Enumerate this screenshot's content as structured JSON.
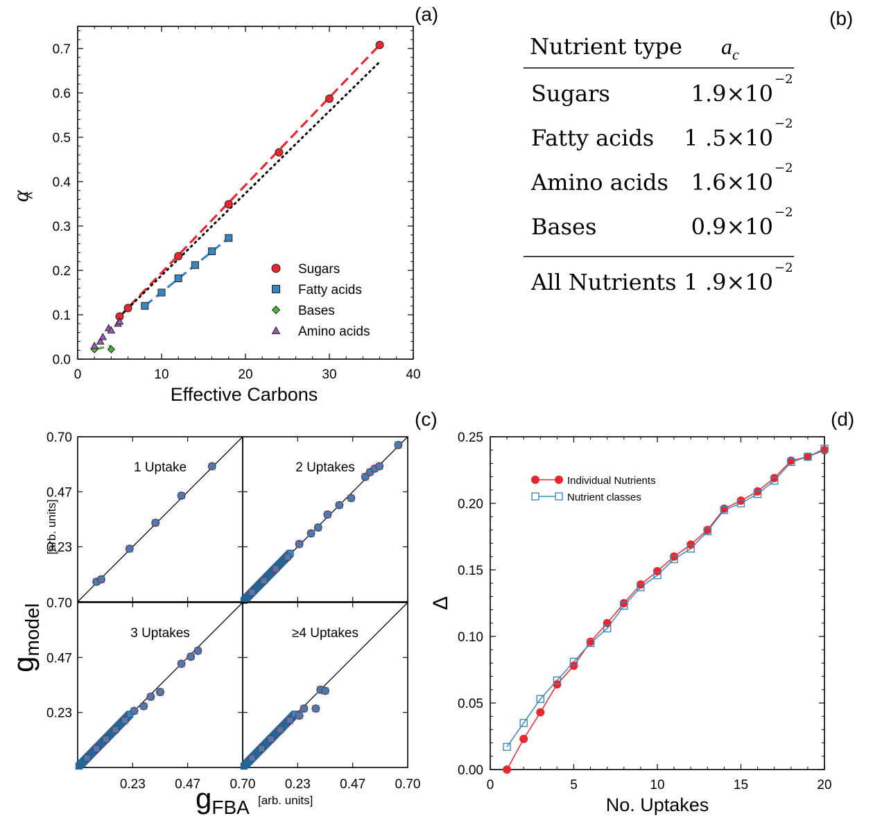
{
  "panel_labels": {
    "a": "(a)",
    "b": "(b)",
    "c": "(c)",
    "d": "(d)"
  },
  "colors": {
    "sugars": "#e8262e",
    "fatty": "#3a87c0",
    "bases": "#4daf3e",
    "amino": "#9b59b6"
  },
  "chart_data": [
    {
      "id": "a",
      "type": "scatter",
      "xlabel": "Effective Carbons",
      "ylabel": "α̂",
      "xlim": [
        0,
        40
      ],
      "ylim": [
        0,
        0.75
      ],
      "xticks": [
        "0",
        "10",
        "20",
        "30",
        "40"
      ],
      "yticks": [
        "0.0",
        "0.1",
        "0.2",
        "0.3",
        "0.4",
        "0.5",
        "0.6",
        "0.7"
      ],
      "legend_position": "bottom-right",
      "series": [
        {
          "name": "Sugars",
          "marker": "circle",
          "x": [
            5,
            6,
            12,
            18,
            24,
            30,
            36
          ],
          "y": [
            0.096,
            0.115,
            0.232,
            0.349,
            0.466,
            0.587,
            0.708
          ]
        },
        {
          "name": "Fatty acids",
          "marker": "square",
          "x": [
            8,
            10,
            12,
            14,
            16,
            18
          ],
          "y": [
            0.12,
            0.15,
            0.182,
            0.212,
            0.243,
            0.273
          ]
        },
        {
          "name": "Bases",
          "marker": "diamond",
          "x": [
            2,
            4
          ],
          "y": [
            0.022,
            0.022
          ]
        },
        {
          "name": "Amino acids",
          "marker": "triangle",
          "x": [
            2,
            2.7,
            3,
            3.7,
            4,
            4.8,
            5
          ],
          "y": [
            0.03,
            0.04,
            0.05,
            0.07,
            0.065,
            0.08,
            0.085
          ]
        }
      ],
      "fits": [
        {
          "series": "Sugars",
          "style": "dashed",
          "x": [
            5,
            36
          ],
          "y": [
            0.096,
            0.708
          ]
        },
        {
          "series": "Fatty acids",
          "style": "dashed",
          "x": [
            8,
            18
          ],
          "y": [
            0.12,
            0.273
          ]
        },
        {
          "series": "Bases",
          "style": "dashed",
          "x": [
            2,
            4
          ],
          "y": [
            0.022,
            0.03
          ]
        },
        {
          "series": "All",
          "style": "dotted",
          "x": [
            5,
            36
          ],
          "y": [
            0.096,
            0.67
          ]
        }
      ]
    },
    {
      "id": "c",
      "type": "scatter",
      "xlabel": "g",
      "xlabel_sub": "FBA",
      "ylabel": "g",
      "ylabel_sub": "model",
      "units": "[arb. units]",
      "ticks": [
        "0.23",
        "0.47",
        "0.70"
      ],
      "range": [
        0,
        0.7
      ],
      "panels": [
        {
          "title": "1 Uptake",
          "x": [
            0.08,
            0.1,
            0.22,
            0.33,
            0.44,
            0.57
          ],
          "y": [
            0.085,
            0.095,
            0.225,
            0.335,
            0.45,
            0.575
          ]
        },
        {
          "title": "2 Uptakes",
          "x": [
            0.04,
            0.09,
            0.14,
            0.19,
            0.24,
            0.29,
            0.32,
            0.36,
            0.41,
            0.46,
            0.52,
            0.54,
            0.56,
            0.58,
            0.66
          ],
          "y": [
            0.04,
            0.09,
            0.14,
            0.19,
            0.245,
            0.29,
            0.315,
            0.37,
            0.41,
            0.44,
            0.53,
            0.55,
            0.565,
            0.575,
            0.665
          ]
        },
        {
          "title": "3 Uptakes",
          "x": [
            0.04,
            0.08,
            0.12,
            0.16,
            0.2,
            0.24,
            0.28,
            0.31,
            0.35,
            0.44,
            0.48,
            0.51
          ],
          "y": [
            0.04,
            0.08,
            0.12,
            0.16,
            0.2,
            0.24,
            0.26,
            0.3,
            0.32,
            0.44,
            0.47,
            0.495
          ]
        },
        {
          "title": "≥4 Uptakes",
          "x": [
            0.04,
            0.08,
            0.12,
            0.16,
            0.2,
            0.24,
            0.26,
            0.31,
            0.33,
            0.35
          ],
          "y": [
            0.04,
            0.08,
            0.12,
            0.16,
            0.2,
            0.22,
            0.25,
            0.25,
            0.33,
            0.325
          ]
        }
      ]
    },
    {
      "id": "d",
      "type": "line",
      "xlabel": "No. Uptakes",
      "ylabel": "Δ",
      "xlim": [
        0,
        20
      ],
      "ylim": [
        0,
        0.25
      ],
      "xticks": [
        "0",
        "5",
        "10",
        "15",
        "20"
      ],
      "yticks": [
        "0.00",
        "0.05",
        "0.10",
        "0.15",
        "0.20",
        "0.25"
      ],
      "legend_position": "top-left",
      "x": [
        1,
        2,
        3,
        4,
        5,
        6,
        7,
        8,
        9,
        10,
        11,
        12,
        13,
        14,
        15,
        16,
        17,
        18,
        19,
        20
      ],
      "series": [
        {
          "name": "Individual Nutrients",
          "marker": "filled-circle",
          "values": [
            0.0,
            0.023,
            0.043,
            0.064,
            0.078,
            0.096,
            0.11,
            0.125,
            0.139,
            0.149,
            0.16,
            0.169,
            0.18,
            0.196,
            0.202,
            0.209,
            0.219,
            0.232,
            0.235,
            0.24
          ]
        },
        {
          "name": "Nutrient classes",
          "marker": "open-square",
          "values": [
            0.017,
            0.035,
            0.053,
            0.067,
            0.081,
            0.095,
            0.106,
            0.123,
            0.137,
            0.146,
            0.158,
            0.166,
            0.179,
            0.195,
            0.2,
            0.207,
            0.217,
            0.231,
            0.235,
            0.241
          ]
        }
      ]
    }
  ],
  "table": {
    "headers": [
      "Nutrient type",
      "a_c"
    ],
    "header_value_base": "a",
    "header_value_sub": "c",
    "rows": [
      {
        "label": "Sugars",
        "mantissa": "1.9×10",
        "exp": "−2"
      },
      {
        "label": "Fatty acids",
        "mantissa": "1 .5×10",
        "exp": "−2"
      },
      {
        "label": "Amino acids",
        "mantissa": "1.6×10",
        "exp": "−2"
      },
      {
        "label": "Bases",
        "mantissa": "0.9×10",
        "exp": "−2"
      }
    ],
    "footer": {
      "label": "All Nutrients",
      "mantissa": "1 .9×10",
      "exp": "−2"
    }
  }
}
